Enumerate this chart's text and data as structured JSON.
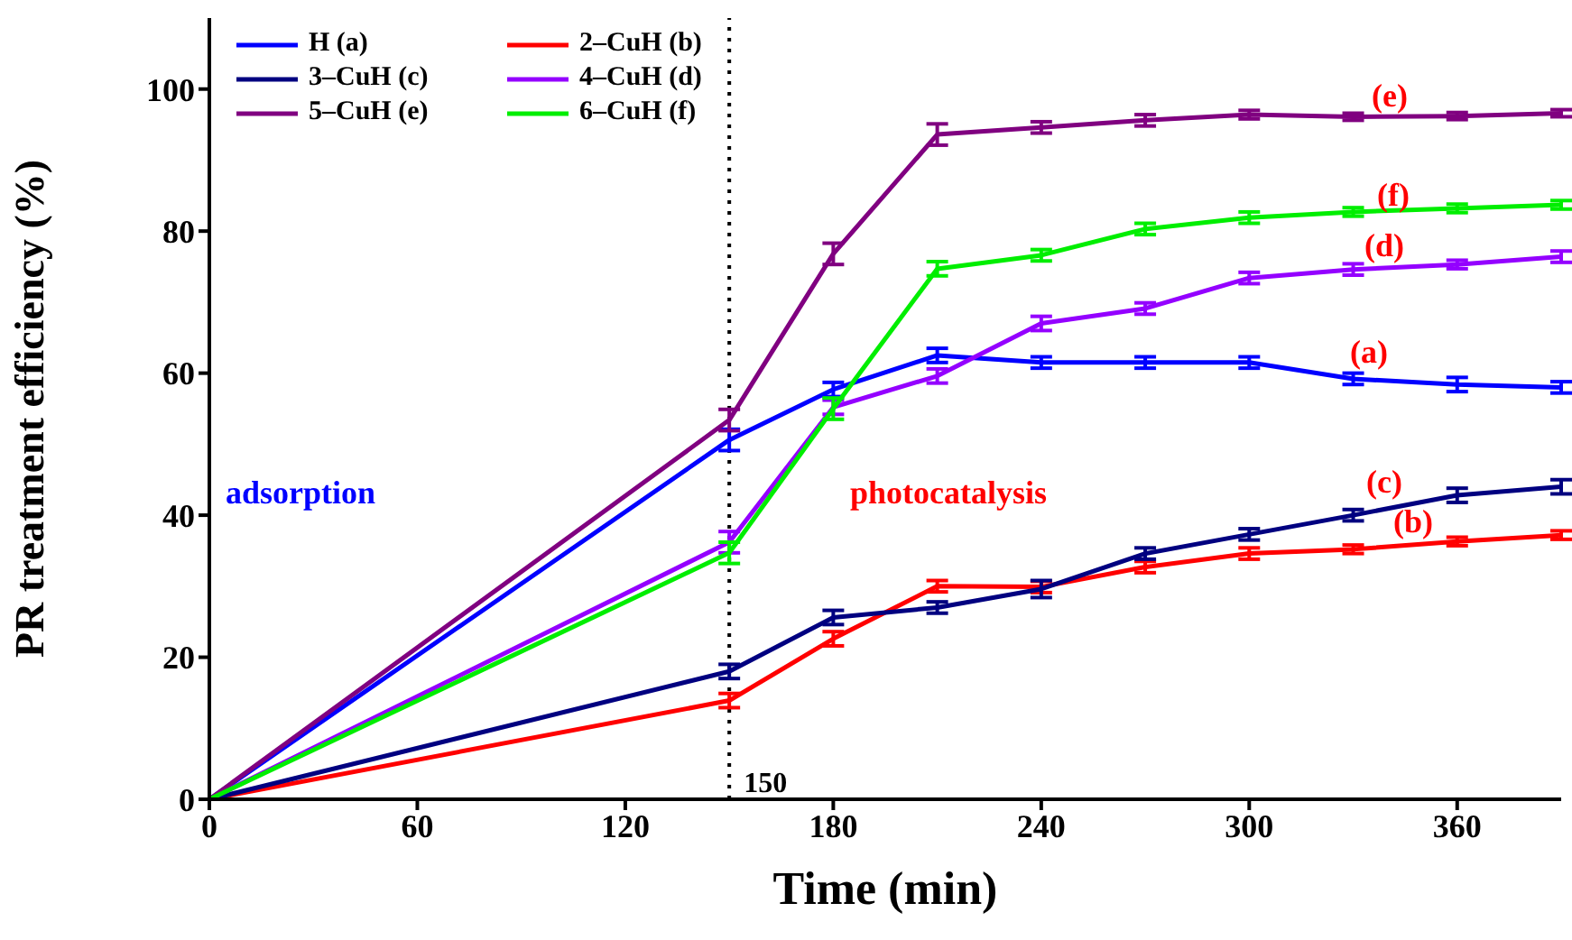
{
  "chart_data": {
    "type": "line",
    "xlabel": "Time (min)",
    "ylabel": "PR treatment efficiency (%)",
    "x": [
      0,
      150,
      180,
      210,
      240,
      270,
      300,
      330,
      360,
      390
    ],
    "series": [
      {
        "name": "H (a)",
        "color": "#0000ff",
        "values": [
          0,
          50.6,
          57.7,
          62.5,
          61.5,
          61.5,
          61.5,
          59.2,
          58.4,
          58
        ],
        "errors": [
          null,
          1.5,
          1,
          1,
          0.8,
          0.8,
          0.8,
          0.8,
          1,
          0.8
        ]
      },
      {
        "name": "2–CuH (b)",
        "color": "#ff0000",
        "values": [
          0,
          13.9,
          22.6,
          30,
          29.9,
          32.7,
          34.6,
          35.2,
          36.3,
          37.2
        ],
        "errors": [
          null,
          1,
          1,
          0.8,
          0.8,
          0.8,
          0.8,
          0.6,
          0.6,
          0.6
        ]
      },
      {
        "name": "3–CuH (c)",
        "color": "#000080",
        "values": [
          0,
          18,
          25.6,
          27,
          29.6,
          34.6,
          37.3,
          40,
          42.8,
          44
        ],
        "errors": [
          null,
          1,
          1,
          0.8,
          1.2,
          0.8,
          0.8,
          0.8,
          1,
          1
        ]
      },
      {
        "name": "4–CuH (d)",
        "color": "#9400ff",
        "values": [
          0,
          36.2,
          55.2,
          59.6,
          67,
          69.1,
          73.4,
          74.6,
          75.3,
          76.4
        ],
        "errors": [
          null,
          1.5,
          1,
          1,
          1,
          0.8,
          0.8,
          0.8,
          0.6,
          0.8
        ]
      },
      {
        "name": "5–CuH (e)",
        "color": "#800080",
        "values": [
          0,
          53.4,
          76.8,
          93.6,
          94.6,
          95.6,
          96.4,
          96.1,
          96.2,
          96.6
        ],
        "errors": [
          null,
          1.5,
          1.5,
          1.5,
          0.8,
          0.8,
          0.6,
          0.5,
          0.5,
          0.5
        ]
      },
      {
        "name": "6–CuH (f)",
        "color": "#00ee00",
        "values": [
          0,
          34.7,
          55,
          74.7,
          76.6,
          80.3,
          81.9,
          82.7,
          83.2,
          83.7
        ],
        "errors": [
          null,
          1.5,
          1.5,
          1,
          0.8,
          0.8,
          0.8,
          0.6,
          0.6,
          0.6
        ]
      }
    ],
    "xlim": [
      0,
      390
    ],
    "xticks": [
      0,
      60,
      120,
      180,
      240,
      300,
      360
    ],
    "ylim": [
      0,
      110
    ],
    "yticks": [
      0,
      20,
      40,
      60,
      80,
      100
    ],
    "grid": false,
    "legend": "top left",
    "marker": "none",
    "line_style": "solid",
    "ref_lines": [
      {
        "axis": "x",
        "value": 150,
        "label": "150",
        "line_style": "dotted",
        "color": "#000000"
      }
    ],
    "annotations": [
      "adsorption",
      "photocatalysis",
      "(e)",
      "(f)",
      "(d)",
      "(a)",
      "(c)",
      "(b)"
    ]
  }
}
